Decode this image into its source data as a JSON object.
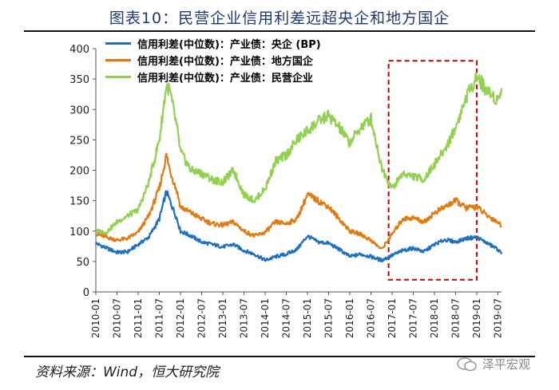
{
  "page": {
    "title": "图表10：民营企业信用利差远超央企和地方国企",
    "source": "资料来源：Wind，恒大研究院",
    "watermark": "泽平宏观"
  },
  "chart_data": {
    "type": "line",
    "title": "",
    "xlabel": "",
    "ylabel": "",
    "ylim": [
      0,
      400
    ],
    "yticks": [
      0,
      50,
      100,
      150,
      200,
      250,
      300,
      350,
      400
    ],
    "xlim": [
      "2010-01",
      "2019-08"
    ],
    "xticks": [
      "2010-01",
      "2010-07",
      "2011-01",
      "2011-07",
      "2012-01",
      "2012-07",
      "2013-01",
      "2013-07",
      "2014-01",
      "2014-07",
      "2015-01",
      "2015-07",
      "2016-01",
      "2016-07",
      "2017-01",
      "2017-07",
      "2018-01",
      "2018-07",
      "2019-01",
      "2019-07"
    ],
    "grid": false,
    "legend_position": "top-left",
    "highlight_box": {
      "x_from": "2016-12",
      "x_to": "2019-01",
      "y_from": 20,
      "y_to": 380,
      "color": "#c00000"
    },
    "series": [
      {
        "name": "信用利差(中位数)：产业债：央企 (BP)",
        "color": "#1f6fbf",
        "x": [
          "2010-01",
          "2010-04",
          "2010-07",
          "2010-10",
          "2011-01",
          "2011-04",
          "2011-07",
          "2011-09",
          "2011-10",
          "2011-12",
          "2012-01",
          "2012-04",
          "2012-07",
          "2012-10",
          "2013-01",
          "2013-04",
          "2013-07",
          "2013-10",
          "2014-01",
          "2014-04",
          "2014-07",
          "2014-10",
          "2015-01",
          "2015-04",
          "2015-07",
          "2015-10",
          "2016-01",
          "2016-04",
          "2016-07",
          "2016-10",
          "2017-01",
          "2017-04",
          "2017-07",
          "2017-10",
          "2018-01",
          "2018-04",
          "2018-07",
          "2018-10",
          "2019-01",
          "2019-04",
          "2019-07",
          "2019-08"
        ],
        "values": [
          80,
          72,
          65,
          66,
          78,
          90,
          120,
          165,
          150,
          120,
          100,
          92,
          82,
          78,
          74,
          78,
          68,
          62,
          52,
          58,
          62,
          70,
          92,
          82,
          80,
          70,
          58,
          62,
          58,
          52,
          60,
          68,
          72,
          66,
          78,
          86,
          82,
          88,
          90,
          80,
          70,
          62
        ]
      },
      {
        "name": "信用利差(中位数)：产业债：地方国企",
        "color": "#e07b12",
        "x": [
          "2010-01",
          "2010-04",
          "2010-07",
          "2010-10",
          "2011-01",
          "2011-04",
          "2011-07",
          "2011-09",
          "2011-10",
          "2011-12",
          "2012-01",
          "2012-04",
          "2012-07",
          "2012-10",
          "2013-01",
          "2013-04",
          "2013-07",
          "2013-10",
          "2014-01",
          "2014-04",
          "2014-07",
          "2014-10",
          "2015-01",
          "2015-04",
          "2015-07",
          "2015-10",
          "2016-01",
          "2016-04",
          "2016-07",
          "2016-10",
          "2017-01",
          "2017-04",
          "2017-07",
          "2017-10",
          "2018-01",
          "2018-04",
          "2018-07",
          "2018-10",
          "2019-01",
          "2019-04",
          "2019-07",
          "2019-08"
        ],
        "values": [
          95,
          90,
          85,
          88,
          98,
          125,
          170,
          225,
          200,
          165,
          140,
          130,
          120,
          112,
          110,
          115,
          100,
          92,
          98,
          115,
          112,
          120,
          160,
          150,
          140,
          120,
          100,
          95,
          85,
          70,
          95,
          120,
          122,
          115,
          130,
          140,
          150,
          138,
          140,
          125,
          115,
          108
        ]
      },
      {
        "name": "信用利差(中位数)：产业债：民营企业",
        "color": "#92d050",
        "x": [
          "2010-01",
          "2010-04",
          "2010-07",
          "2010-10",
          "2011-01",
          "2011-04",
          "2011-07",
          "2011-09",
          "2011-10",
          "2011-12",
          "2012-01",
          "2012-04",
          "2012-07",
          "2012-10",
          "2013-01",
          "2013-04",
          "2013-07",
          "2013-10",
          "2014-01",
          "2014-04",
          "2014-07",
          "2014-10",
          "2015-01",
          "2015-04",
          "2015-07",
          "2015-10",
          "2016-01",
          "2016-04",
          "2016-07",
          "2016-10",
          "2017-01",
          "2017-04",
          "2017-07",
          "2017-10",
          "2018-01",
          "2018-04",
          "2018-07",
          "2018-10",
          "2019-01",
          "2019-04",
          "2019-07",
          "2019-08"
        ],
        "values": [
          100,
          98,
          115,
          125,
          135,
          180,
          250,
          340,
          330,
          270,
          230,
          200,
          195,
          185,
          180,
          200,
          160,
          150,
          170,
          215,
          225,
          250,
          265,
          280,
          290,
          270,
          245,
          270,
          285,
          205,
          170,
          195,
          190,
          185,
          210,
          235,
          270,
          320,
          355,
          330,
          315,
          335
        ]
      }
    ]
  }
}
